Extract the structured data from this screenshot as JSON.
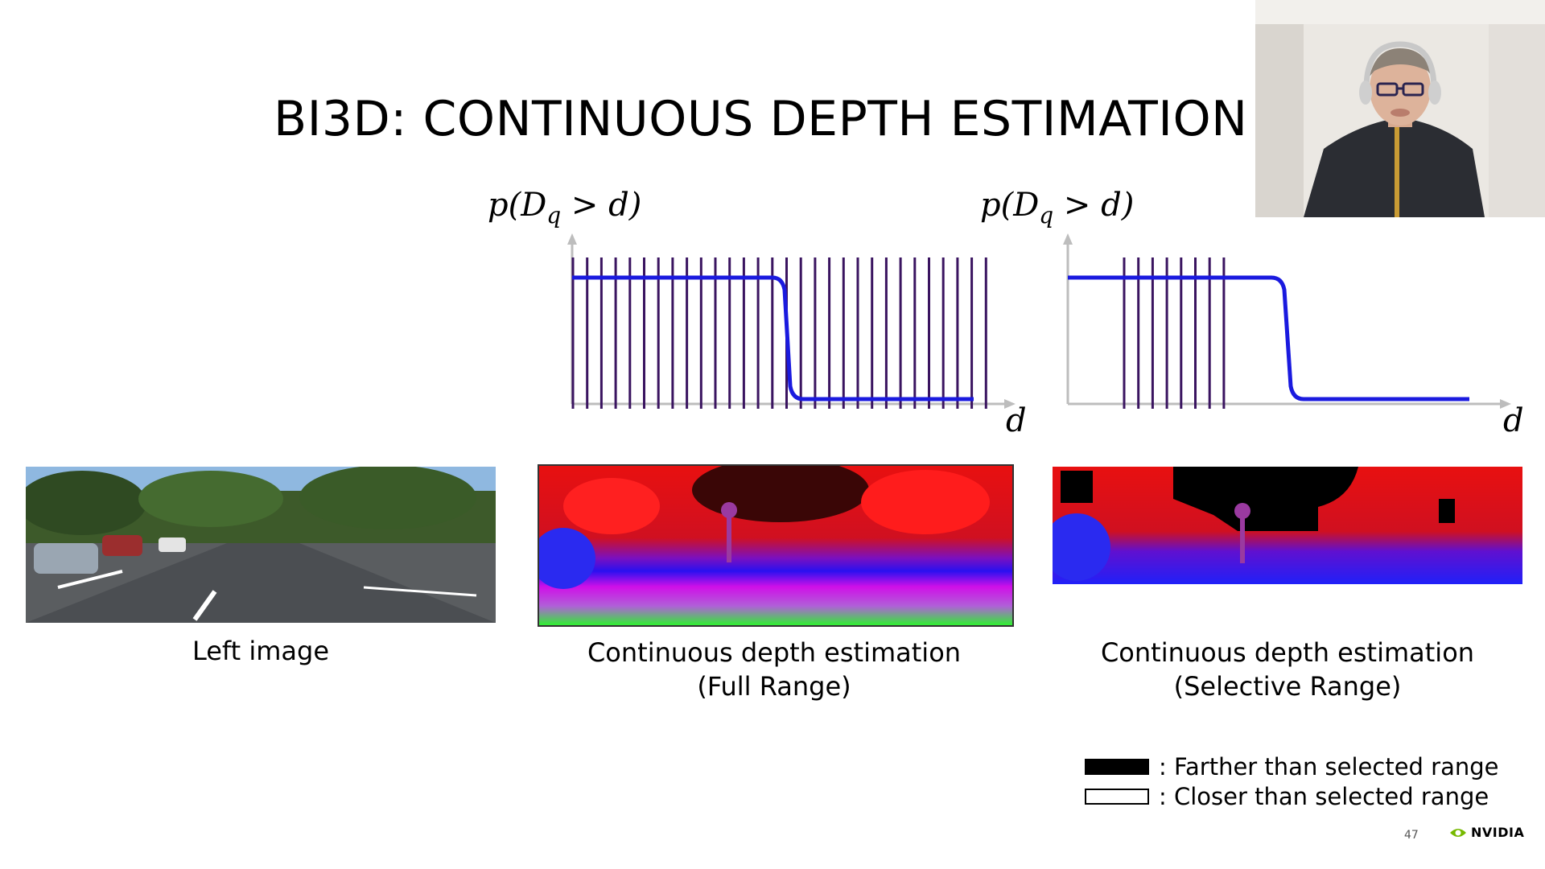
{
  "slide": {
    "title": "BI3D: CONTINUOUS DEPTH ESTIMATION",
    "page_number": "47",
    "brand": "NVIDIA"
  },
  "plots": {
    "left": {
      "y_label": "p(D_q > d)",
      "x_label": "d"
    },
    "right": {
      "y_label": "p(D_q > d)",
      "x_label": "d"
    }
  },
  "captions": {
    "left_image": "Left image",
    "full_range_line1": "Continuous depth estimation",
    "full_range_line2": "(Full Range)",
    "selective_line1": "Continuous depth estimation",
    "selective_line2": "(Selective Range)"
  },
  "legend": {
    "farther": ": Farther than selected range",
    "closer": ": Closer than selected range"
  },
  "colors": {
    "curve": "#1a1adf",
    "bar": "#3a1460",
    "axis": "#bdbdbd",
    "accent_green": "#76b900"
  }
}
